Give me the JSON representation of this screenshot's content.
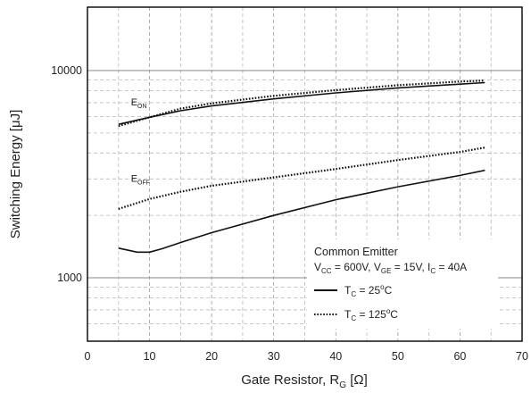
{
  "chart_data": {
    "type": "line",
    "xlabel": {
      "main": "Gate Resistor, R",
      "sub": "G",
      "unit": " [Ω]"
    },
    "ylabel": "Switching Energy [μJ]",
    "xlim": [
      0,
      70
    ],
    "ylim": [
      500,
      20000
    ],
    "yscale": "log",
    "grid": true,
    "x_ticks": [
      0,
      10,
      20,
      30,
      40,
      50,
      60,
      70
    ],
    "x_tick_labels": [
      "0",
      "10",
      "20",
      "30",
      "40",
      "50",
      "60",
      "70"
    ],
    "y_ticks": [
      1000,
      10000
    ],
    "y_tick_labels": [
      "1000",
      "10000"
    ],
    "series": [
      {
        "curve": "E_ON",
        "temp": "25",
        "style": "solid",
        "x": [
          5,
          10,
          15,
          20,
          30,
          40,
          50,
          60,
          64
        ],
        "y": [
          5500,
          5950,
          6400,
          6750,
          7300,
          7800,
          8250,
          8600,
          8750
        ]
      },
      {
        "curve": "E_ON",
        "temp": "125",
        "style": "dotted",
        "x": [
          5,
          10,
          15,
          20,
          30,
          40,
          50,
          60,
          64
        ],
        "y": [
          5400,
          5950,
          6550,
          6950,
          7550,
          8050,
          8500,
          8850,
          8950
        ]
      },
      {
        "curve": "E_OFF",
        "temp": "25",
        "style": "solid",
        "x": [
          5,
          8,
          10,
          12,
          15,
          20,
          30,
          40,
          50,
          60,
          64
        ],
        "y": [
          1390,
          1330,
          1330,
          1380,
          1480,
          1650,
          2000,
          2380,
          2750,
          3120,
          3300
        ]
      },
      {
        "curve": "E_OFF",
        "temp": "125",
        "style": "dotted",
        "x": [
          5,
          10,
          15,
          20,
          30,
          40,
          50,
          60,
          64
        ],
        "y": [
          2150,
          2400,
          2600,
          2780,
          3050,
          3350,
          3700,
          4050,
          4250
        ]
      }
    ],
    "curve_labels": [
      {
        "main": "E",
        "sub": "ON",
        "x": 7,
        "y": 6800
      },
      {
        "main": "E",
        "sub": "OFF",
        "x": 7,
        "y": 2900
      }
    ],
    "legend": {
      "placement": "bottom-right",
      "title": "Common Emitter",
      "conditions": [
        {
          "main": "V",
          "sub": "CC",
          "rest": " = 600V, "
        },
        {
          "main": "V",
          "sub": "GE",
          "rest": " = 15V, "
        },
        {
          "main": "I",
          "sub": "C",
          "rest": " = 40A"
        }
      ],
      "entries": [
        {
          "style": "solid",
          "main": "T",
          "sub": "C",
          "rest": " = 25",
          "sup": "o",
          "unit": "C"
        },
        {
          "style": "dotted",
          "main": "T",
          "sub": "C",
          "rest": " = 125",
          "sup": "o",
          "unit": "C"
        }
      ]
    }
  }
}
